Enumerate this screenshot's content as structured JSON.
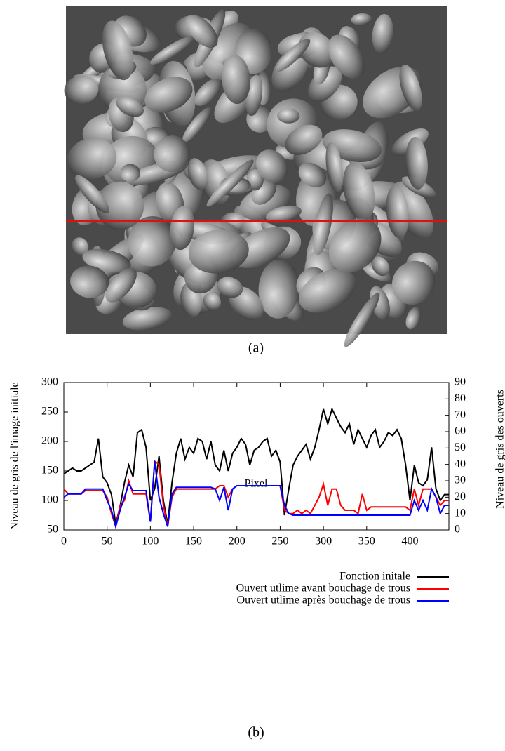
{
  "figure": {
    "caption_a": "(a)",
    "caption_b": "(b)"
  },
  "chart_data": {
    "type": "line",
    "xlabel": "Pixel",
    "ylabel": "Niveau de gris de l'image initiale",
    "y2label": "Niveau de gris des ouverts",
    "xlim": [
      0,
      445
    ],
    "xticks": [
      0,
      50,
      100,
      150,
      200,
      250,
      300,
      350,
      400
    ],
    "ylim": [
      50,
      300
    ],
    "yticks": [
      50,
      100,
      150,
      200,
      250,
      300
    ],
    "y2lim": [
      0,
      90
    ],
    "y2ticks": [
      0,
      10,
      20,
      30,
      40,
      50,
      60,
      70,
      80,
      90
    ],
    "x": [
      0,
      5,
      10,
      15,
      20,
      25,
      30,
      35,
      40,
      45,
      50,
      55,
      60,
      65,
      70,
      75,
      80,
      85,
      90,
      95,
      100,
      105,
      110,
      115,
      120,
      125,
      130,
      135,
      140,
      145,
      150,
      155,
      160,
      165,
      170,
      175,
      180,
      185,
      190,
      195,
      200,
      205,
      210,
      215,
      220,
      225,
      230,
      235,
      240,
      245,
      250,
      255,
      260,
      265,
      270,
      275,
      280,
      285,
      290,
      295,
      300,
      305,
      310,
      315,
      320,
      325,
      330,
      335,
      340,
      345,
      350,
      355,
      360,
      365,
      370,
      375,
      380,
      385,
      390,
      395,
      400,
      405,
      410,
      415,
      420,
      425,
      430,
      435,
      440,
      445
    ],
    "series": [
      {
        "name": "Fonction initale",
        "color": "#000000",
        "values": [
          145,
          150,
          155,
          150,
          150,
          155,
          160,
          165,
          205,
          140,
          130,
          110,
          60,
          90,
          130,
          160,
          140,
          215,
          220,
          190,
          100,
          120,
          175,
          100,
          60,
          130,
          180,
          205,
          170,
          190,
          180,
          205,
          200,
          170,
          200,
          160,
          150,
          185,
          150,
          180,
          190,
          205,
          195,
          160,
          185,
          190,
          200,
          205,
          175,
          185,
          165,
          75,
          120,
          160,
          175,
          185,
          195,
          170,
          190,
          220,
          255,
          230,
          255,
          240,
          225,
          215,
          230,
          195,
          220,
          205,
          190,
          210,
          220,
          190,
          200,
          215,
          210,
          220,
          205,
          160,
          100,
          160,
          130,
          125,
          135,
          190,
          120,
          100,
          110,
          110
        ]
      },
      {
        "name": "Ouvert utlime avant bouchage de trous",
        "color": "#ff0000",
        "axis": "y2",
        "values": [
          25,
          22,
          22,
          22,
          22,
          24,
          24,
          24,
          24,
          24,
          20,
          10,
          2,
          15,
          18,
          30,
          22,
          22,
          22,
          22,
          5,
          42,
          40,
          15,
          2,
          20,
          25,
          25,
          25,
          25,
          25,
          25,
          25,
          25,
          25,
          25,
          27,
          27,
          20,
          25,
          27,
          27,
          27,
          27,
          27,
          27,
          27,
          27,
          27,
          27,
          27,
          12,
          10,
          10,
          12,
          10,
          12,
          10,
          15,
          20,
          28,
          15,
          25,
          25,
          15,
          12,
          12,
          12,
          10,
          22,
          12,
          14,
          14,
          14,
          14,
          14,
          14,
          14,
          14,
          14,
          12,
          25,
          15,
          25,
          25,
          25,
          20,
          15,
          18,
          18
        ]
      },
      {
        "name": "Ouvert utlime après bouchage de trous",
        "color": "#0000ff",
        "axis": "y2",
        "values": [
          20,
          22,
          22,
          22,
          22,
          25,
          25,
          25,
          25,
          25,
          18,
          12,
          2,
          12,
          20,
          28,
          24,
          24,
          24,
          24,
          5,
          42,
          20,
          10,
          2,
          22,
          26,
          26,
          26,
          26,
          26,
          26,
          26,
          26,
          26,
          25,
          18,
          26,
          12,
          25,
          27,
          27,
          27,
          27,
          27,
          27,
          27,
          27,
          27,
          27,
          27,
          15,
          10,
          9,
          9,
          9,
          9,
          9,
          9,
          9,
          9,
          9,
          9,
          9,
          9,
          9,
          9,
          9,
          9,
          9,
          9,
          9,
          9,
          9,
          9,
          9,
          9,
          9,
          9,
          9,
          9,
          18,
          12,
          18,
          12,
          25,
          20,
          10,
          15,
          15
        ]
      }
    ]
  }
}
